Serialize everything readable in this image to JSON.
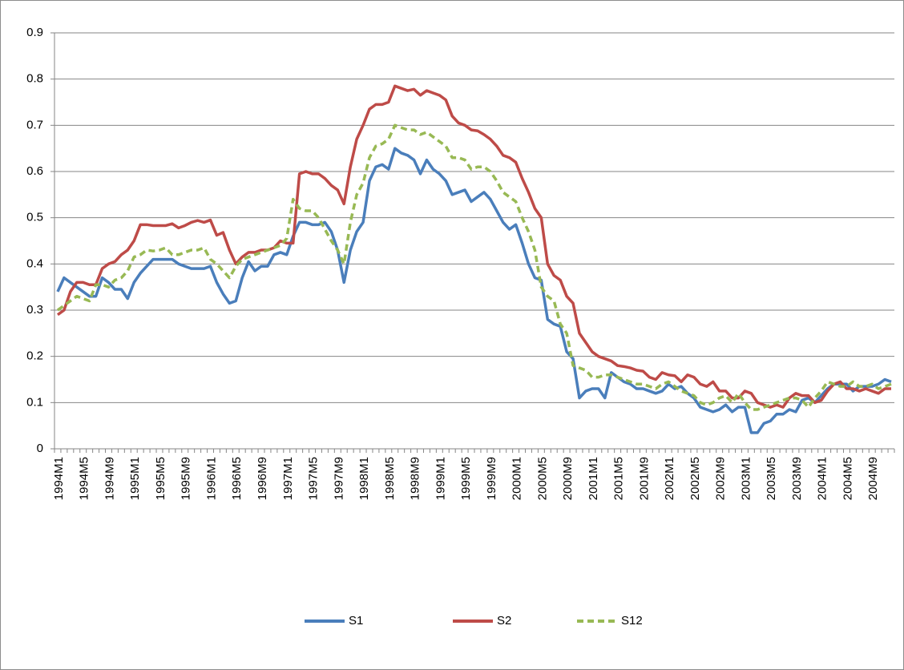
{
  "chart_data": {
    "type": "line",
    "categories": [
      "1994M1",
      null,
      null,
      null,
      "1994M5",
      null,
      null,
      null,
      "1994M9",
      null,
      null,
      null,
      "1995M1",
      null,
      null,
      null,
      "1995M5",
      null,
      null,
      null,
      "1995M9",
      null,
      null,
      null,
      "1996M1",
      null,
      null,
      null,
      "1996M5",
      null,
      null,
      null,
      "1996M9",
      null,
      null,
      null,
      "1997M1",
      null,
      null,
      null,
      "1997M5",
      null,
      null,
      null,
      "1997M9",
      null,
      null,
      null,
      "1998M1",
      null,
      null,
      null,
      "1998M5",
      null,
      null,
      null,
      "1998M9",
      null,
      null,
      null,
      "1999M1",
      null,
      null,
      null,
      "1999M5",
      null,
      null,
      null,
      "1999M9",
      null,
      null,
      null,
      "2000M1",
      null,
      null,
      null,
      "2000M5",
      null,
      null,
      null,
      "2000M9",
      null,
      null,
      null,
      "2001M1",
      null,
      null,
      null,
      "2001M5",
      null,
      null,
      null,
      "2001M9",
      null,
      null,
      null,
      "2002M1",
      null,
      null,
      null,
      "2002M5",
      null,
      null,
      null,
      "2002M9",
      null,
      null,
      null,
      "2003M1",
      null,
      null,
      null,
      "2003M5",
      null,
      null,
      null,
      "2003M9",
      null,
      null,
      null,
      "2004M1",
      null,
      null,
      null,
      "2004M5",
      null,
      null,
      null,
      "2004M9",
      null,
      null,
      null
    ],
    "series": [
      {
        "name": "S1",
        "color": "#4a7ebb",
        "dashed": false,
        "values": [
          0.34,
          0.37,
          0.36,
          0.35,
          0.34,
          0.33,
          0.33,
          0.37,
          0.36,
          0.345,
          0.345,
          0.325,
          0.36,
          0.38,
          0.395,
          0.41,
          0.41,
          0.41,
          0.41,
          0.4,
          0.395,
          0.39,
          0.39,
          0.39,
          0.395,
          0.36,
          0.335,
          0.315,
          0.32,
          0.37,
          0.405,
          0.385,
          0.395,
          0.395,
          0.42,
          0.425,
          0.42,
          0.46,
          0.49,
          0.49,
          0.485,
          0.485,
          0.49,
          0.47,
          0.43,
          0.36,
          0.43,
          0.47,
          0.49,
          0.58,
          0.61,
          0.615,
          0.605,
          0.65,
          0.64,
          0.635,
          0.625,
          0.595,
          0.625,
          0.605,
          0.595,
          0.58,
          0.55,
          0.555,
          0.56,
          0.535,
          0.545,
          0.555,
          0.54,
          0.515,
          0.49,
          0.475,
          0.485,
          0.445,
          0.4,
          0.37,
          0.365,
          0.28,
          0.27,
          0.265,
          0.21,
          0.195,
          0.11,
          0.125,
          0.13,
          0.13,
          0.11,
          0.165,
          0.155,
          0.145,
          0.14,
          0.13,
          0.13,
          0.125,
          0.12,
          0.125,
          0.14,
          0.13,
          0.135,
          0.12,
          0.11,
          0.09,
          0.085,
          0.08,
          0.085,
          0.095,
          0.08,
          0.09,
          0.09,
          0.035,
          0.035,
          0.055,
          0.06,
          0.075,
          0.075,
          0.085,
          0.08,
          0.105,
          0.11,
          0.1,
          0.115,
          0.13,
          0.14,
          0.14,
          0.14,
          0.125,
          0.135,
          0.135,
          0.135,
          0.14,
          0.15,
          0.145
        ]
      },
      {
        "name": "S2",
        "color": "#be4b48",
        "dashed": false,
        "values": [
          0.29,
          0.3,
          0.34,
          0.36,
          0.36,
          0.355,
          0.355,
          0.39,
          0.4,
          0.405,
          0.42,
          0.43,
          0.45,
          0.485,
          0.485,
          0.483,
          0.483,
          0.483,
          0.487,
          0.478,
          0.483,
          0.49,
          0.494,
          0.49,
          0.495,
          0.462,
          0.468,
          0.43,
          0.4,
          0.415,
          0.425,
          0.425,
          0.43,
          0.43,
          0.435,
          0.45,
          0.445,
          0.445,
          0.595,
          0.6,
          0.595,
          0.595,
          0.585,
          0.57,
          0.56,
          0.53,
          0.61,
          0.67,
          0.7,
          0.735,
          0.745,
          0.745,
          0.75,
          0.785,
          0.78,
          0.775,
          0.778,
          0.765,
          0.775,
          0.77,
          0.765,
          0.755,
          0.72,
          0.705,
          0.7,
          0.69,
          0.688,
          0.68,
          0.67,
          0.655,
          0.635,
          0.63,
          0.62,
          0.585,
          0.555,
          0.52,
          0.5,
          0.4,
          0.375,
          0.365,
          0.33,
          0.315,
          0.25,
          0.23,
          0.21,
          0.2,
          0.195,
          0.19,
          0.18,
          0.178,
          0.175,
          0.17,
          0.168,
          0.155,
          0.15,
          0.165,
          0.16,
          0.158,
          0.145,
          0.16,
          0.155,
          0.14,
          0.135,
          0.145,
          0.125,
          0.125,
          0.11,
          0.11,
          0.125,
          0.12,
          0.1,
          0.095,
          0.09,
          0.095,
          0.09,
          0.11,
          0.12,
          0.115,
          0.115,
          0.1,
          0.105,
          0.125,
          0.14,
          0.145,
          0.13,
          0.13,
          0.125,
          0.13,
          0.125,
          0.12,
          0.13,
          0.13
        ]
      },
      {
        "name": "S12",
        "color": "#98b954",
        "dashed": true,
        "values": [
          0.3,
          0.31,
          0.32,
          0.33,
          0.325,
          0.32,
          0.355,
          0.355,
          0.35,
          0.365,
          0.37,
          0.385,
          0.415,
          0.42,
          0.43,
          0.428,
          0.43,
          0.435,
          0.42,
          0.42,
          0.425,
          0.43,
          0.43,
          0.435,
          0.41,
          0.4,
          0.385,
          0.37,
          0.395,
          0.41,
          0.415,
          0.42,
          0.425,
          0.43,
          0.435,
          0.44,
          0.455,
          0.54,
          0.52,
          0.515,
          0.515,
          0.5,
          0.475,
          0.45,
          0.43,
          0.4,
          0.49,
          0.55,
          0.575,
          0.63,
          0.655,
          0.66,
          0.67,
          0.7,
          0.695,
          0.69,
          0.69,
          0.68,
          0.685,
          0.675,
          0.665,
          0.655,
          0.63,
          0.63,
          0.625,
          0.605,
          0.61,
          0.61,
          0.6,
          0.58,
          0.555,
          0.545,
          0.535,
          0.5,
          0.47,
          0.43,
          0.35,
          0.33,
          0.32,
          0.27,
          0.25,
          0.18,
          0.175,
          0.17,
          0.155,
          0.155,
          0.16,
          0.16,
          0.155,
          0.15,
          0.145,
          0.14,
          0.14,
          0.135,
          0.13,
          0.14,
          0.145,
          0.135,
          0.125,
          0.12,
          0.115,
          0.1,
          0.095,
          0.1,
          0.11,
          0.115,
          0.1,
          0.12,
          0.1,
          0.085,
          0.085,
          0.09,
          0.095,
          0.1,
          0.105,
          0.11,
          0.11,
          0.105,
          0.09,
          0.11,
          0.125,
          0.145,
          0.14,
          0.135,
          0.135,
          0.145,
          0.135,
          0.135,
          0.14,
          0.13,
          0.135,
          0.14
        ]
      }
    ],
    "ylim": [
      0,
      0.9
    ],
    "yticks": [
      0,
      0.1,
      0.2,
      0.3,
      0.4,
      0.5,
      0.6,
      0.7,
      0.8,
      0.9
    ],
    "grid": true,
    "legend": "bottom"
  }
}
